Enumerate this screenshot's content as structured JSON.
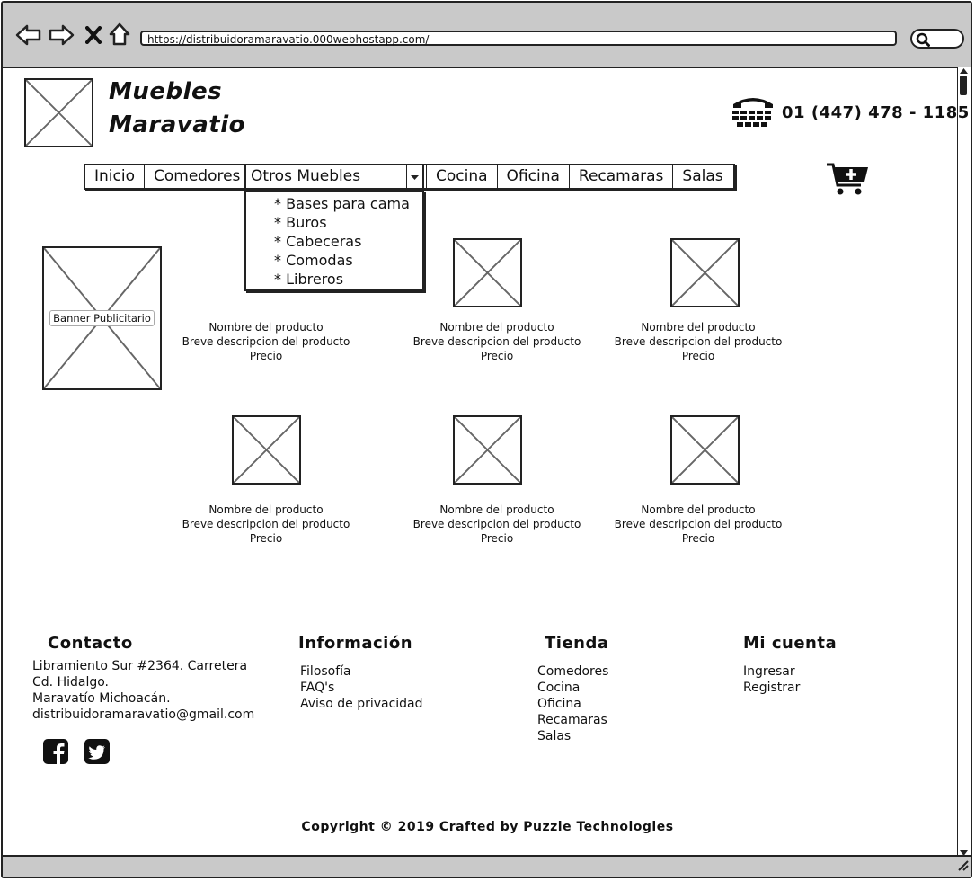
{
  "browser": {
    "url": "https://distribuidoramaravatio.000webhostapp.com/",
    "icons": [
      "back-arrow-icon",
      "forward-arrow-icon",
      "close-icon",
      "home-icon",
      "search-icon"
    ]
  },
  "header": {
    "brand_line1": "Muebles",
    "brand_line2": "Maravatio",
    "phone": "01 (447) 478 - 1185",
    "icons": [
      "telephone-icon",
      "add-to-cart-icon"
    ]
  },
  "nav": {
    "items": [
      "Inicio",
      "Comedores"
    ],
    "dropdown_selected": "Otros Muebles",
    "dropdown_options": [
      "* Bases para cama",
      "* Buros",
      "* Cabeceras",
      "* Comodas",
      "* Libreros"
    ],
    "items_after": [
      "Cocina",
      "Oficina",
      "Recamaras",
      "Salas"
    ]
  },
  "banner": {
    "label": "Banner Publicitario"
  },
  "products": [
    {
      "name": "Nombre del producto",
      "desc": "Breve descripcion del producto",
      "price": "Precio"
    },
    {
      "name": "Nombre del producto",
      "desc": "Breve descripcion del producto",
      "price": "Precio"
    },
    {
      "name": "Nombre del producto",
      "desc": "Breve descripcion del producto",
      "price": "Precio"
    },
    {
      "name": "Nombre del producto",
      "desc": "Breve descripcion del producto",
      "price": "Precio"
    },
    {
      "name": "Nombre del producto",
      "desc": "Breve descripcion del producto",
      "price": "Precio"
    },
    {
      "name": "Nombre del producto",
      "desc": "Breve descripcion del producto",
      "price": "Precio"
    }
  ],
  "footer": {
    "contacto": {
      "title": "Contacto",
      "lines": [
        "Libramiento Sur #2364. Carretera",
        "Cd. Hidalgo.",
        "Maravatío Michoacán.",
        "distribuidoramaravatio@gmail.com"
      ]
    },
    "informacion": {
      "title": "Información",
      "links": [
        "Filosofía",
        "FAQ's",
        "Aviso de privacidad"
      ]
    },
    "tienda": {
      "title": "Tienda",
      "links": [
        "Comedores",
        "Cocina",
        "Oficina",
        "Recamaras",
        "Salas"
      ]
    },
    "cuenta": {
      "title": "Mi cuenta",
      "links": [
        "Ingresar",
        "Registrar"
      ]
    },
    "social_icons": [
      "facebook-icon",
      "twitter-icon"
    ],
    "copyright": "Copyright © 2019 Crafted by Puzzle Technologies"
  }
}
